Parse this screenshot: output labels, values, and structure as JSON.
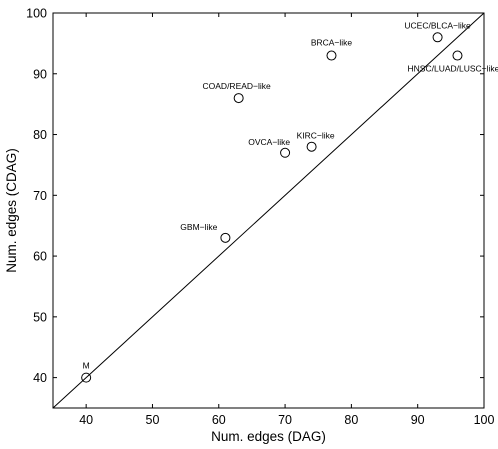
{
  "chart_data": {
    "type": "scatter",
    "title": "",
    "xlabel": "Num. edges (DAG)",
    "ylabel": "Num. edges (CDAG)",
    "xlim": [
      35,
      100
    ],
    "ylim": [
      35,
      100
    ],
    "xticks": [
      40,
      50,
      60,
      70,
      80,
      90,
      100
    ],
    "yticks": [
      40,
      50,
      60,
      70,
      80,
      90,
      100
    ],
    "grid": false,
    "reference_line": "y = x",
    "marker": "open-circle",
    "points": [
      {
        "label": "M",
        "x": 40,
        "y": 40
      },
      {
        "label": "GBM−like",
        "x": 61,
        "y": 63
      },
      {
        "label": "OVCA−like",
        "x": 70,
        "y": 77
      },
      {
        "label": "KIRC−like",
        "x": 74,
        "y": 78
      },
      {
        "label": "COAD/READ−like",
        "x": 63,
        "y": 86
      },
      {
        "label": "BRCA−like",
        "x": 77,
        "y": 93
      },
      {
        "label": "UCEC/BLCA−like",
        "x": 93,
        "y": 96
      },
      {
        "label": "HNSC/LUAD/LUSC−like",
        "x": 96,
        "y": 93
      }
    ]
  }
}
